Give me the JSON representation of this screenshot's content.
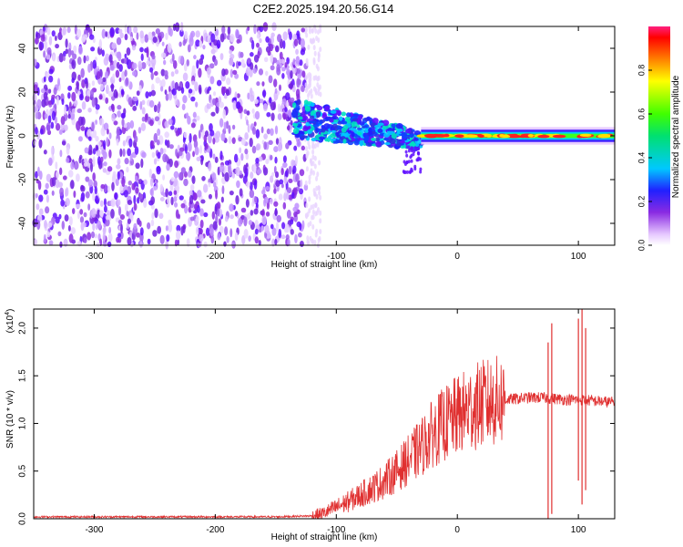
{
  "title": "C2E2.2025.194.20.56.G14",
  "chart_data": [
    {
      "type": "heatmap",
      "xlabel": "Height of straight line (km)",
      "ylabel": "Frequency (Hz)",
      "xlim": [
        -350,
        130
      ],
      "ylim": [
        -50,
        50
      ],
      "xticks": [
        -300,
        -200,
        -100,
        0,
        100
      ],
      "yticks": [
        -40,
        -20,
        0,
        20,
        40
      ],
      "colorbar": {
        "label": "Normalized spectral amplitude",
        "range": [
          0,
          1
        ],
        "ticks": [
          0.0,
          0.2,
          0.4,
          0.6,
          0.8
        ]
      },
      "features": {
        "noise_region_x": [
          -350,
          -125
        ],
        "strong_line_x": [
          -30,
          130
        ],
        "strong_line_freq": 0,
        "dispersed_region_x": [
          -135,
          -30
        ]
      }
    },
    {
      "type": "line",
      "xlabel": "Height of straight line (km)",
      "ylabel": "SNR (10 * v/v)",
      "y_multiplier": "(x10",
      "y_multiplier_exp": "4",
      "y_multiplier_close": ")",
      "xlim": [
        -350,
        130
      ],
      "ylim": [
        0,
        2.2
      ],
      "xticks": [
        -300,
        -200,
        -100,
        0,
        100
      ],
      "yticks": [
        0.0,
        0.5,
        1.0,
        1.5,
        2.0
      ],
      "color": "#e03030",
      "series_points": [
        [
          -350,
          0.02
        ],
        [
          -300,
          0.02
        ],
        [
          -250,
          0.02
        ],
        [
          -200,
          0.02
        ],
        [
          -150,
          0.02
        ],
        [
          -120,
          0.03
        ],
        [
          -110,
          0.06
        ],
        [
          -100,
          0.12
        ],
        [
          -90,
          0.18
        ],
        [
          -80,
          0.25
        ],
        [
          -70,
          0.32
        ],
        [
          -60,
          0.4
        ],
        [
          -50,
          0.5
        ],
        [
          -40,
          0.62
        ],
        [
          -30,
          0.75
        ],
        [
          -20,
          0.9
        ],
        [
          -10,
          1.0
        ],
        [
          0,
          1.08
        ],
        [
          10,
          1.15
        ],
        [
          20,
          1.2
        ],
        [
          30,
          1.23
        ],
        [
          40,
          1.25
        ],
        [
          50,
          1.26
        ],
        [
          60,
          1.27
        ],
        [
          70,
          1.27
        ],
        [
          80,
          1.26
        ],
        [
          90,
          1.25
        ],
        [
          100,
          1.25
        ],
        [
          110,
          1.24
        ],
        [
          120,
          1.23
        ],
        [
          130,
          1.22
        ]
      ],
      "spikes": [
        {
          "x": 75,
          "min": 0.0,
          "max": 1.85
        },
        {
          "x": 78,
          "min": 0.05,
          "max": 2.05
        },
        {
          "x": 100,
          "min": 0.4,
          "max": 2.1
        },
        {
          "x": 103,
          "min": 0.15,
          "max": 2.2
        },
        {
          "x": 106,
          "min": 0.3,
          "max": 2.0
        }
      ]
    }
  ],
  "colors": {
    "axis": "#000000",
    "line": "#e03030",
    "noise": "#8a2be2"
  }
}
